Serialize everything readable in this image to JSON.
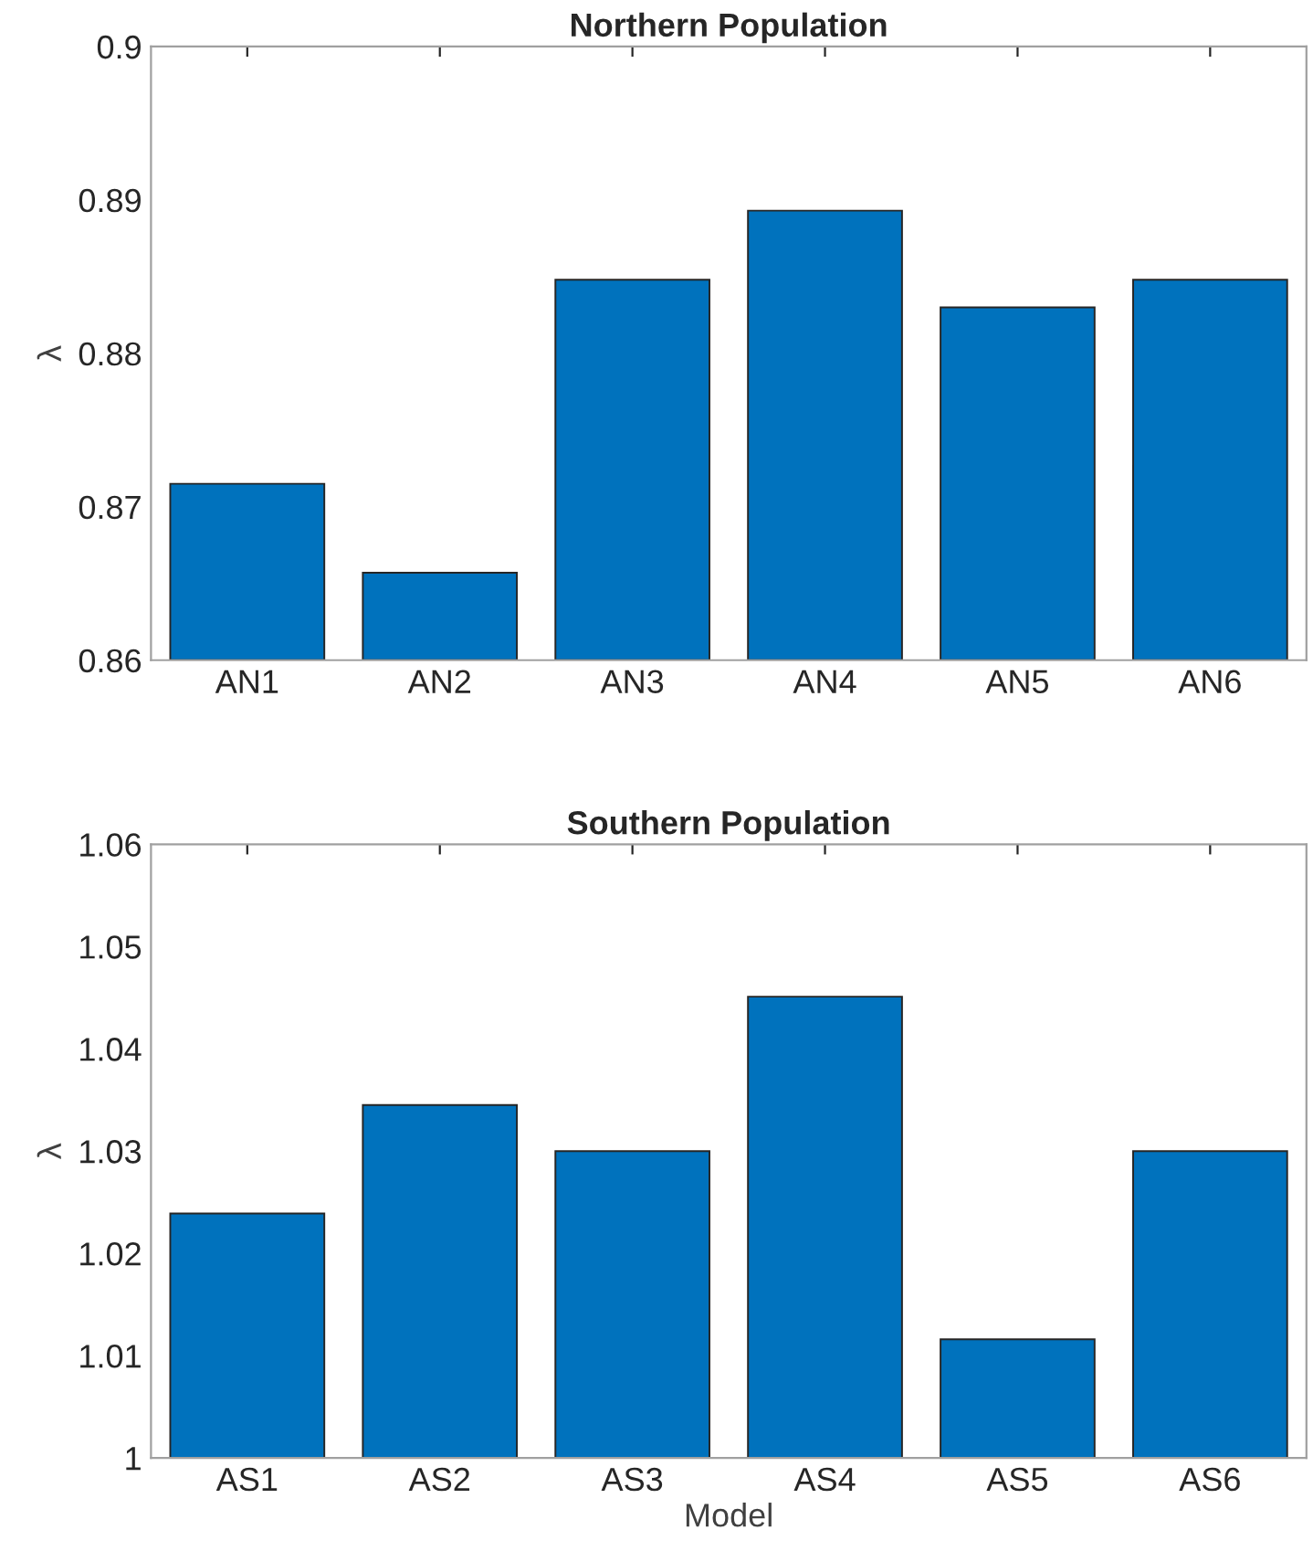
{
  "chart_data": [
    {
      "type": "bar",
      "title": "Northern Population",
      "ylabel": "λ",
      "categories": [
        "AN1",
        "AN2",
        "AN3",
        "AN4",
        "AN5",
        "AN6"
      ],
      "series": [
        {
          "color": "#0072bd",
          "values": [
            0.8715,
            0.8657,
            0.8848,
            0.8893,
            0.883,
            0.8848
          ]
        }
      ],
      "ylim": [
        0.86,
        0.9
      ],
      "yticks": [
        0.86,
        0.87,
        0.88,
        0.89,
        0.9
      ],
      "grid": false,
      "legend": false
    },
    {
      "type": "bar",
      "title": "Southern Population",
      "xlabel": "Model",
      "ylabel": "λ",
      "categories": [
        "AS1",
        "AS2",
        "AS3",
        "AS4",
        "AS5",
        "AS6"
      ],
      "series": [
        {
          "color": "#0072bd",
          "values": [
            1.0239,
            1.0345,
            1.03,
            1.0451,
            1.0116,
            1.03
          ]
        }
      ],
      "ylim": [
        1,
        1.06
      ],
      "yticks": [
        1,
        1.01,
        1.02,
        1.03,
        1.04,
        1.05,
        1.06
      ],
      "grid": false,
      "legend": false
    }
  ]
}
